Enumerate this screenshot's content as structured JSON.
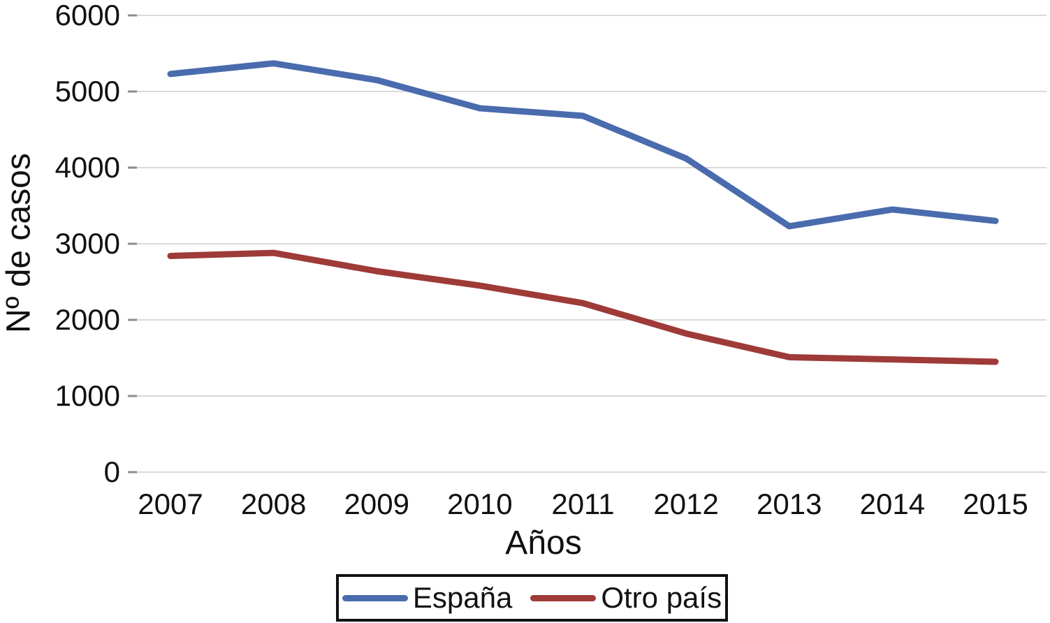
{
  "chart_data": {
    "type": "line",
    "categories": [
      "2007",
      "2008",
      "2009",
      "2010",
      "2011",
      "2012",
      "2013",
      "2014",
      "2015"
    ],
    "series": [
      {
        "name": "España",
        "color": "#4a6bad",
        "values": [
          5230,
          5370,
          5150,
          4780,
          4680,
          4120,
          3230,
          3450,
          3300
        ]
      },
      {
        "name": "Otro país",
        "color": "#9e3a37",
        "values": [
          2840,
          2880,
          2640,
          2450,
          2220,
          1820,
          1510,
          1480,
          1450
        ]
      }
    ],
    "title": "",
    "xlabel": "Años",
    "ylabel": "Nº de casos",
    "ylim": [
      0,
      6000
    ],
    "y_ticks": [
      0,
      1000,
      2000,
      3000,
      4000,
      5000,
      6000
    ],
    "grid": "horizontal",
    "gridline_color": "#d9d9d9",
    "tick_mark_color": "#8c8c8c",
    "legend_position": "bottom"
  }
}
